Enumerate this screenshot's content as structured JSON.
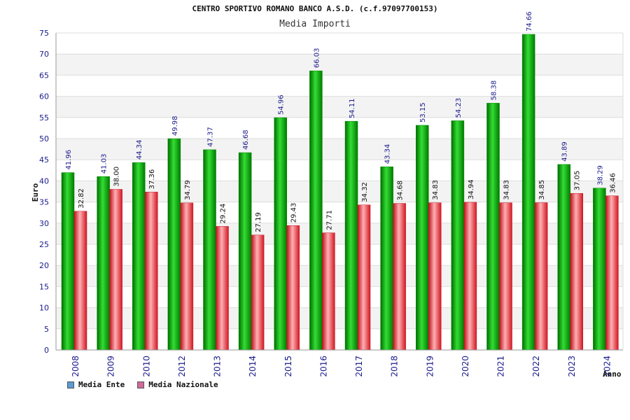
{
  "chart_data": {
    "type": "bar",
    "title": "CENTRO SPORTIVO ROMANO BANCO A.S.D. (c.f.97097700153)",
    "subtitle": "Media Importi",
    "xlabel": "Anno",
    "ylabel": "Euro",
    "ylim": [
      0,
      75
    ],
    "yticks": [
      "0",
      "5",
      "10",
      "15",
      "20",
      "25",
      "30",
      "35",
      "40",
      "45",
      "50",
      "55",
      "60",
      "65",
      "70",
      "75"
    ],
    "categories": [
      "2008",
      "2009",
      "2010",
      "2012",
      "2013",
      "2014",
      "2015",
      "2016",
      "2017",
      "2018",
      "2019",
      "2020",
      "2021",
      "2022",
      "2023",
      "2024"
    ],
    "series": [
      {
        "name": "Media Ente",
        "color": "#00b000",
        "label_color": "#1a1a8c",
        "values": [
          41.96,
          41.03,
          44.34,
          49.98,
          47.37,
          46.68,
          54.96,
          66.03,
          54.11,
          43.34,
          53.15,
          54.23,
          58.38,
          74.66,
          43.89,
          38.29
        ],
        "labels": [
          "41.96",
          "41.03",
          "44.34",
          "49.98",
          "47.37",
          "46.68",
          "54.96",
          "66.03",
          "54.11",
          "43.34",
          "53.15",
          "54.23",
          "58.38",
          "74.66",
          "43.89",
          "38.29"
        ]
      },
      {
        "name": "Media Nazionale",
        "color": "#e0303a",
        "label_color": "#111111",
        "values": [
          32.82,
          38.0,
          37.36,
          34.79,
          29.24,
          27.19,
          29.43,
          27.71,
          34.32,
          34.68,
          34.83,
          34.94,
          34.83,
          34.85,
          37.05,
          36.46
        ],
        "labels": [
          "32.82",
          "38.00",
          "37.36",
          "34.79",
          "29.24",
          "27.19",
          "29.43",
          "27.71",
          "34.32",
          "34.68",
          "34.83",
          "34.94",
          "34.83",
          "34.85",
          "37.05",
          "36.46"
        ]
      }
    ],
    "grid": true,
    "legend_position": "bottom-left",
    "legend": [
      {
        "name": "Media Ente",
        "color": "#5b9bd5"
      },
      {
        "name": "Media Nazionale",
        "color": "#d06a9a"
      }
    ]
  }
}
